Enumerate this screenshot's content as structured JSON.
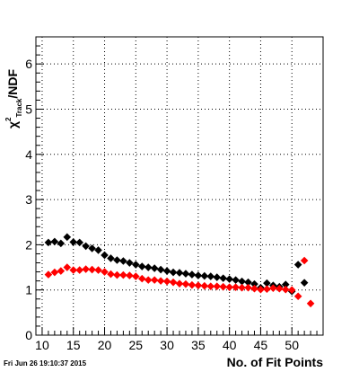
{
  "timestamp": "Fri Jun 26 19:10:37 2015",
  "chart_data": {
    "type": "scatter",
    "title": "",
    "xlabel": "No. of Fit Points",
    "ylabel": {
      "chi": "χ",
      "sup": "2",
      "sub": "Track",
      "rest": "/NDF"
    },
    "xlim": [
      9,
      55
    ],
    "ylim": [
      0,
      6.6
    ],
    "x_ticks": [
      10,
      15,
      20,
      25,
      30,
      35,
      40,
      45,
      50
    ],
    "y_ticks": [
      0,
      1,
      2,
      3,
      4,
      5,
      6
    ],
    "grid": true,
    "legend": "none",
    "series": [
      {
        "color": "#000000",
        "x": [
          11,
          12,
          13,
          14,
          15,
          16,
          17,
          18,
          19,
          20,
          21,
          22,
          23,
          24,
          25,
          26,
          27,
          28,
          29,
          30,
          31,
          32,
          33,
          34,
          35,
          36,
          37,
          38,
          39,
          40,
          41,
          42,
          43,
          44,
          45,
          46,
          47,
          48,
          49,
          50,
          51,
          52
        ],
        "y": [
          2.05,
          2.07,
          2.03,
          2.17,
          2.06,
          2.05,
          1.97,
          1.92,
          1.88,
          1.77,
          1.7,
          1.66,
          1.64,
          1.6,
          1.56,
          1.52,
          1.5,
          1.48,
          1.45,
          1.42,
          1.39,
          1.38,
          1.36,
          1.34,
          1.32,
          1.31,
          1.3,
          1.28,
          1.26,
          1.24,
          1.22,
          1.19,
          1.17,
          1.13,
          1.05,
          1.15,
          1.1,
          1.07,
          1.12,
          0.97,
          1.56,
          1.16
        ]
      },
      {
        "color": "#ff0000",
        "x": [
          11,
          12,
          13,
          14,
          15,
          16,
          17,
          18,
          19,
          20,
          21,
          22,
          23,
          24,
          25,
          26,
          27,
          28,
          29,
          30,
          31,
          32,
          33,
          34,
          35,
          36,
          37,
          38,
          39,
          40,
          41,
          42,
          43,
          44,
          45,
          46,
          47,
          48,
          49,
          50,
          51,
          52,
          53
        ],
        "y": [
          1.34,
          1.39,
          1.42,
          1.5,
          1.44,
          1.44,
          1.46,
          1.45,
          1.44,
          1.4,
          1.35,
          1.33,
          1.33,
          1.32,
          1.3,
          1.25,
          1.22,
          1.22,
          1.2,
          1.19,
          1.17,
          1.14,
          1.13,
          1.11,
          1.1,
          1.09,
          1.08,
          1.08,
          1.07,
          1.06,
          1.06,
          1.05,
          1.05,
          1.03,
          1.01,
          1.02,
          1.04,
          1.03,
          1.01,
          1.0,
          0.86,
          1.65,
          0.7
        ]
      }
    ]
  }
}
